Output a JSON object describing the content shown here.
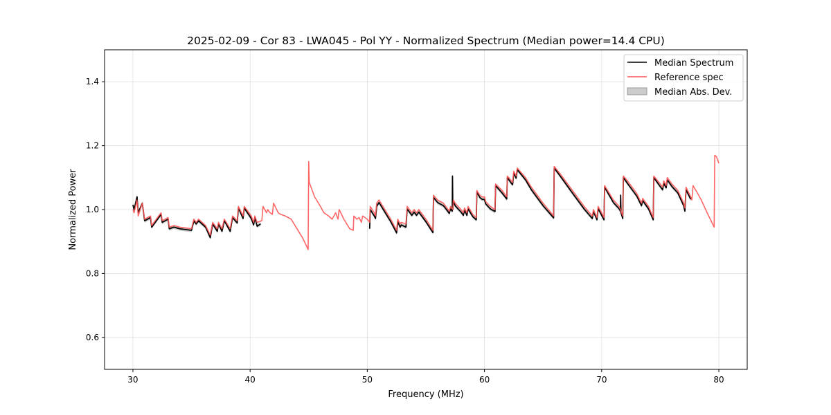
{
  "chart_data": {
    "type": "line",
    "title": "2025-02-09 - Cor 83 - LWA045 - Pol YY - Normalized Spectrum (Median power=14.4 CPU)",
    "xlabel": "Frequency (MHz)",
    "ylabel": "Normalized Power",
    "xlim": [
      27.58,
      82.42
    ],
    "ylim": [
      0.5,
      1.5
    ],
    "xticks": [
      30,
      40,
      50,
      60,
      70,
      80
    ],
    "xtick_labels": [
      "30",
      "40",
      "50",
      "60",
      "70",
      "80"
    ],
    "yticks": [
      0.6,
      0.8,
      1.0,
      1.2,
      1.4
    ],
    "ytick_labels": [
      "0.6",
      "0.8",
      "1.0",
      "1.2",
      "1.4"
    ],
    "grid": true,
    "legend_position": "top-right",
    "colors": {
      "median": "#000000",
      "reference": "#ff5555",
      "mad": "#999999"
    },
    "legend": [
      "Median Spectrum",
      "Reference spec",
      "Median Abs. Dev."
    ],
    "mad_halfwidth": 0.006,
    "reference": [
      [
        30.0,
        1.0
      ],
      [
        30.1,
        0.99
      ],
      [
        30.35,
        1.03
      ],
      [
        30.45,
        0.98
      ],
      [
        30.8,
        1.02
      ],
      [
        31.0,
        0.97
      ],
      [
        31.5,
        0.98
      ],
      [
        31.6,
        0.95
      ],
      [
        32.4,
        0.99
      ],
      [
        32.5,
        0.965
      ],
      [
        33.0,
        0.975
      ],
      [
        33.1,
        0.945
      ],
      [
        33.5,
        0.95
      ],
      [
        34.0,
        0.945
      ],
      [
        35.0,
        0.94
      ],
      [
        35.2,
        0.97
      ],
      [
        35.4,
        0.96
      ],
      [
        35.6,
        0.97
      ],
      [
        36.2,
        0.95
      ],
      [
        36.6,
        0.92
      ],
      [
        36.8,
        0.96
      ],
      [
        37.2,
        0.94
      ],
      [
        37.3,
        0.96
      ],
      [
        37.6,
        0.94
      ],
      [
        37.8,
        0.97
      ],
      [
        38.3,
        0.94
      ],
      [
        38.5,
        0.98
      ],
      [
        38.9,
        0.965
      ],
      [
        39.0,
        1.01
      ],
      [
        39.4,
        0.98
      ],
      [
        39.5,
        1.01
      ],
      [
        40.1,
        0.98
      ],
      [
        40.3,
        0.96
      ],
      [
        40.4,
        0.98
      ],
      [
        40.6,
        0.96
      ],
      [
        41.0,
        0.965
      ],
      [
        41.1,
        1.01
      ],
      [
        41.4,
        0.99
      ],
      [
        41.5,
        1.0
      ],
      [
        41.7,
        0.99
      ],
      [
        41.9,
        0.985
      ],
      [
        42.0,
        1.02
      ],
      [
        42.4,
        0.99
      ],
      [
        42.6,
        0.985
      ],
      [
        43.0,
        0.98
      ],
      [
        43.5,
        0.97
      ],
      [
        44.0,
        0.94
      ],
      [
        44.5,
        0.91
      ],
      [
        44.95,
        0.875
      ],
      [
        45.0,
        1.15
      ],
      [
        45.05,
        1.085
      ],
      [
        45.5,
        1.04
      ],
      [
        46.0,
        1.01
      ],
      [
        46.3,
        0.99
      ],
      [
        46.7,
        0.98
      ],
      [
        47.0,
        0.97
      ],
      [
        47.3,
        0.99
      ],
      [
        47.5,
        0.97
      ],
      [
        47.6,
        1.0
      ],
      [
        48.0,
        0.97
      ],
      [
        48.5,
        0.94
      ],
      [
        48.8,
        0.935
      ],
      [
        48.85,
        0.98
      ],
      [
        49.1,
        0.97
      ],
      [
        49.3,
        0.975
      ],
      [
        49.5,
        0.96
      ],
      [
        49.6,
        0.98
      ],
      [
        50.0,
        0.97
      ],
      [
        50.2,
        0.96
      ],
      [
        50.25,
        1.01
      ],
      [
        50.6,
        0.99
      ],
      [
        50.7,
        0.98
      ],
      [
        50.8,
        1.02
      ],
      [
        51.0,
        1.03
      ],
      [
        51.5,
        1.0
      ],
      [
        52.0,
        0.97
      ],
      [
        52.5,
        0.935
      ],
      [
        52.6,
        0.97
      ],
      [
        52.8,
        0.955
      ],
      [
        52.9,
        0.96
      ],
      [
        53.3,
        0.955
      ],
      [
        53.4,
        1.01
      ],
      [
        53.8,
        0.99
      ],
      [
        54.0,
        1.0
      ],
      [
        54.2,
        0.99
      ],
      [
        54.4,
        1.0
      ],
      [
        55.0,
        0.97
      ],
      [
        55.6,
        0.935
      ],
      [
        55.65,
        1.045
      ],
      [
        56.0,
        1.03
      ],
      [
        56.5,
        1.02
      ],
      [
        56.8,
        1.005
      ],
      [
        57.0,
        0.995
      ],
      [
        57.1,
        1.01
      ],
      [
        57.3,
        1.0
      ],
      [
        57.35,
        1.03
      ],
      [
        57.5,
        1.02
      ],
      [
        58.0,
        1.0
      ],
      [
        58.2,
        0.99
      ],
      [
        58.3,
        1.005
      ],
      [
        58.5,
        0.99
      ],
      [
        58.6,
        1.01
      ],
      [
        59.0,
        0.985
      ],
      [
        59.3,
        0.975
      ],
      [
        59.35,
        1.06
      ],
      [
        59.6,
        1.045
      ],
      [
        59.8,
        1.04
      ],
      [
        60.0,
        1.04
      ],
      [
        60.1,
        1.025
      ],
      [
        60.5,
        1.01
      ],
      [
        60.9,
        1.0
      ],
      [
        60.95,
        1.08
      ],
      [
        61.5,
        1.06
      ],
      [
        61.9,
        1.04
      ],
      [
        61.95,
        1.105
      ],
      [
        62.3,
        1.09
      ],
      [
        62.4,
        1.085
      ],
      [
        62.5,
        1.12
      ],
      [
        62.7,
        1.105
      ],
      [
        62.8,
        1.13
      ],
      [
        63.5,
        1.1
      ],
      [
        64.0,
        1.07
      ],
      [
        65.0,
        1.02
      ],
      [
        65.9,
        0.98
      ],
      [
        65.95,
        1.135
      ],
      [
        66.5,
        1.11
      ],
      [
        67.5,
        1.06
      ],
      [
        68.5,
        1.01
      ],
      [
        69.2,
        0.98
      ],
      [
        69.3,
        1.0
      ],
      [
        69.6,
        0.975
      ],
      [
        69.7,
        1.01
      ],
      [
        70.0,
        0.99
      ],
      [
        70.2,
        0.975
      ],
      [
        70.25,
        1.075
      ],
      [
        71.0,
        1.03
      ],
      [
        71.5,
        1.01
      ],
      [
        71.8,
        0.98
      ],
      [
        71.85,
        1.105
      ],
      [
        72.2,
        1.09
      ],
      [
        72.4,
        1.08
      ],
      [
        73.0,
        1.05
      ],
      [
        73.4,
        1.02
      ],
      [
        73.5,
        1.035
      ],
      [
        74.0,
        1.01
      ],
      [
        74.4,
        0.975
      ],
      [
        74.45,
        1.105
      ],
      [
        75.0,
        1.08
      ],
      [
        75.2,
        1.07
      ],
      [
        75.3,
        1.09
      ],
      [
        75.5,
        1.075
      ],
      [
        75.6,
        1.1
      ],
      [
        76.0,
        1.08
      ],
      [
        76.5,
        1.06
      ],
      [
        77.0,
        1.02
      ],
      [
        77.1,
        1.005
      ],
      [
        77.2,
        1.07
      ],
      [
        77.6,
        1.04
      ],
      [
        77.7,
        1.03
      ],
      [
        77.8,
        1.075
      ],
      [
        78.2,
        1.05
      ],
      [
        78.5,
        1.03
      ],
      [
        79.0,
        0.99
      ],
      [
        79.6,
        0.945
      ],
      [
        79.65,
        1.17
      ],
      [
        79.8,
        1.165
      ],
      [
        80.0,
        1.145
      ]
    ],
    "median": [
      [
        [
          30.0,
          1.015
        ],
        [
          30.1,
          1.0
        ],
        [
          30.35,
          1.04
        ],
        [
          30.45,
          0.99
        ],
        [
          30.8,
          1.02
        ],
        [
          31.0,
          0.965
        ],
        [
          31.5,
          0.975
        ],
        [
          31.6,
          0.945
        ],
        [
          32.4,
          0.985
        ],
        [
          32.5,
          0.96
        ],
        [
          33.0,
          0.97
        ],
        [
          33.1,
          0.94
        ],
        [
          33.5,
          0.945
        ],
        [
          34.0,
          0.94
        ],
        [
          35.0,
          0.935
        ],
        [
          35.2,
          0.965
        ],
        [
          35.4,
          0.955
        ],
        [
          35.6,
          0.965
        ],
        [
          36.2,
          0.945
        ],
        [
          36.6,
          0.912
        ],
        [
          36.8,
          0.955
        ],
        [
          37.2,
          0.932
        ],
        [
          37.3,
          0.955
        ],
        [
          37.6,
          0.932
        ],
        [
          37.8,
          0.965
        ],
        [
          38.3,
          0.932
        ],
        [
          38.5,
          0.975
        ],
        [
          38.9,
          0.958
        ],
        [
          39.0,
          1.005
        ],
        [
          39.4,
          0.972
        ],
        [
          39.5,
          1.005
        ],
        [
          40.1,
          0.972
        ],
        [
          40.3,
          0.952
        ],
        [
          40.4,
          0.975
        ],
        [
          40.6,
          0.948
        ],
        [
          40.9,
          0.955
        ]
      ],
      [
        [
          50.2,
          0.94
        ],
        [
          50.25,
          1.0
        ],
        [
          50.6,
          0.98
        ],
        [
          50.7,
          0.972
        ],
        [
          50.8,
          1.01
        ],
        [
          51.0,
          1.022
        ],
        [
          51.5,
          0.992
        ],
        [
          52.0,
          0.962
        ],
        [
          52.5,
          0.927
        ],
        [
          52.6,
          0.962
        ],
        [
          52.8,
          0.945
        ],
        [
          52.9,
          0.952
        ],
        [
          53.3,
          0.945
        ],
        [
          53.4,
          1.002
        ],
        [
          53.8,
          0.982
        ],
        [
          54.0,
          0.992
        ],
        [
          54.2,
          0.982
        ],
        [
          54.4,
          0.992
        ],
        [
          55.0,
          0.962
        ],
        [
          55.6,
          0.928
        ],
        [
          55.65,
          1.038
        ],
        [
          56.0,
          1.022
        ],
        [
          56.5,
          1.012
        ],
        [
          56.8,
          0.998
        ],
        [
          57.0,
          0.988
        ],
        [
          57.1,
          1.003
        ],
        [
          57.25,
          0.995
        ],
        [
          57.27,
          1.105
        ],
        [
          57.3,
          1.0
        ],
        [
          57.35,
          1.025
        ],
        [
          57.5,
          1.012
        ],
        [
          58.0,
          0.992
        ],
        [
          58.2,
          0.982
        ],
        [
          58.3,
          0.998
        ],
        [
          58.5,
          0.982
        ],
        [
          58.6,
          1.002
        ],
        [
          59.0,
          0.978
        ],
        [
          59.3,
          0.968
        ],
        [
          59.35,
          1.055
        ],
        [
          59.6,
          1.038
        ],
        [
          59.8,
          1.032
        ],
        [
          60.0,
          1.032
        ],
        [
          60.1,
          1.018
        ],
        [
          60.5,
          1.002
        ],
        [
          60.9,
          0.994
        ],
        [
          60.95,
          1.075
        ],
        [
          61.5,
          1.052
        ],
        [
          61.9,
          1.033
        ],
        [
          61.95,
          1.1
        ],
        [
          62.3,
          1.082
        ],
        [
          62.4,
          1.078
        ],
        [
          62.5,
          1.115
        ],
        [
          62.7,
          1.098
        ],
        [
          62.8,
          1.125
        ],
        [
          63.5,
          1.093
        ],
        [
          64.0,
          1.062
        ],
        [
          65.0,
          1.012
        ],
        [
          65.9,
          0.974
        ],
        [
          65.95,
          1.13
        ],
        [
          66.5,
          1.103
        ],
        [
          67.5,
          1.052
        ],
        [
          68.5,
          1.002
        ],
        [
          69.2,
          0.972
        ],
        [
          69.3,
          0.994
        ],
        [
          69.6,
          0.968
        ],
        [
          69.7,
          1.003
        ],
        [
          70.0,
          0.982
        ],
        [
          70.2,
          0.968
        ],
        [
          70.25,
          1.07
        ],
        [
          71.0,
          1.022
        ],
        [
          71.5,
          1.002
        ],
        [
          71.6,
          0.995
        ],
        [
          71.62,
          1.045
        ],
        [
          71.65,
          0.99
        ],
        [
          71.8,
          0.972
        ],
        [
          71.85,
          1.1
        ],
        [
          72.2,
          1.082
        ],
        [
          72.4,
          1.072
        ],
        [
          73.0,
          1.042
        ],
        [
          73.4,
          1.012
        ],
        [
          73.5,
          1.028
        ],
        [
          74.0,
          1.002
        ],
        [
          74.4,
          0.968
        ],
        [
          74.45,
          1.1
        ],
        [
          75.0,
          1.072
        ],
        [
          75.2,
          1.062
        ],
        [
          75.3,
          1.082
        ],
        [
          75.5,
          1.068
        ],
        [
          75.6,
          1.093
        ],
        [
          76.0,
          1.072
        ],
        [
          76.5,
          1.052
        ],
        [
          77.0,
          1.012
        ],
        [
          77.1,
          0.995
        ],
        [
          77.2,
          1.062
        ],
        [
          77.6,
          1.032
        ]
      ]
    ]
  }
}
